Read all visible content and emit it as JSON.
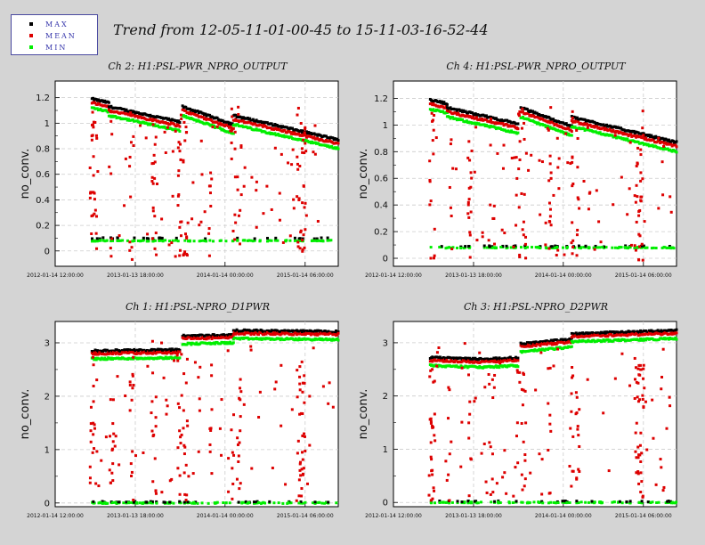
{
  "title": "Trend from 12-05-11-01-00-45 to 15-11-03-16-52-44",
  "colors": {
    "max": "#000000",
    "mean": "#dd0000",
    "min": "#00ee00"
  },
  "legend": [
    {
      "label": "MAX",
      "color": "#000000"
    },
    {
      "label": "MEAN",
      "color": "#dd0000"
    },
    {
      "label": "MIN",
      "color": "#00ee00"
    }
  ],
  "chart_data": [
    {
      "type": "scatter",
      "title": "Ch 2: H1:PSL-PWR_NPRO_OUTPUT",
      "ylabel": "no_conv.",
      "ylim": [
        -0.12,
        1.33
      ],
      "yticks": [
        0,
        0.2,
        0.4,
        0.6,
        0.8,
        1,
        1.2
      ],
      "ytick_labels": [
        "0",
        "0.2",
        "0.4",
        "0.6",
        "0.8",
        "1",
        "1.2"
      ],
      "xticks": [
        "2012-01-14 12:00:00",
        "2013-01-13 18:00:00",
        "2014-01-14 00:00:00",
        "2015-01-14 06:00:00"
      ],
      "grid": true,
      "trend": {
        "segments": [
          {
            "x": [
              0.13,
              0.19
            ],
            "y": [
              1.16,
              1.13
            ]
          },
          {
            "x": [
              0.19,
              0.44
            ],
            "y": [
              1.1,
              0.98
            ]
          },
          {
            "x": [
              0.45,
              0.63
            ],
            "y": [
              1.1,
              0.96
            ]
          },
          {
            "x": [
              0.63,
              1.0
            ],
            "y": [
              1.03,
              0.84
            ]
          }
        ],
        "max_offset": 0.03,
        "min_offset": -0.04,
        "low_min": 0.08,
        "low_max": 0.1
      }
    },
    {
      "type": "scatter",
      "title": "Ch 4: H1:PSL-PWR_NPRO_OUTPUT",
      "ylabel": "no_conv.",
      "ylim": [
        -0.06,
        1.33
      ],
      "yticks": [
        0,
        0.2,
        0.4,
        0.6,
        0.8,
        1,
        1.2
      ],
      "ytick_labels": [
        "0",
        "0.2",
        "0.4",
        "0.6",
        "0.8",
        "1",
        "1.2"
      ],
      "xticks": [
        "2012-01-14 12:00:00",
        "2013-01-13 18:00:00",
        "2014-01-14 00:00:00",
        "2015-01-14 06:00:00"
      ],
      "grid": true,
      "trend": {
        "segments": [
          {
            "x": [
              0.13,
              0.19
            ],
            "y": [
              1.16,
              1.13
            ]
          },
          {
            "x": [
              0.19,
              0.44
            ],
            "y": [
              1.1,
              0.98
            ]
          },
          {
            "x": [
              0.45,
              0.63
            ],
            "y": [
              1.1,
              0.96
            ]
          },
          {
            "x": [
              0.63,
              1.0
            ],
            "y": [
              1.03,
              0.84
            ]
          }
        ],
        "max_offset": 0.03,
        "min_offset": -0.04,
        "low_min": 0.08,
        "low_max": 0.09
      }
    },
    {
      "type": "scatter",
      "title": "Ch 1: H1:PSL-NPRO_D1PWR",
      "ylabel": "no_conv.",
      "ylim": [
        -0.07,
        3.4
      ],
      "yticks": [
        0,
        1,
        2,
        3
      ],
      "ytick_labels": [
        "0",
        "1",
        "2",
        "3"
      ],
      "xticks": [
        "2012-01-14 12:00:00",
        "2013-01-13 18:00:00",
        "2014-01-14 00:00:00",
        "2015-01-14 06:00:00"
      ],
      "grid": true,
      "trend": {
        "segments": [
          {
            "x": [
              0.13,
              0.44
            ],
            "y": [
              2.8,
              2.82
            ]
          },
          {
            "x": [
              0.45,
              0.63
            ],
            "y": [
              3.08,
              3.1
            ]
          },
          {
            "x": [
              0.63,
              1.0
            ],
            "y": [
              3.18,
              3.16
            ]
          }
        ],
        "max_offset": 0.05,
        "min_offset": -0.1,
        "low_min": 0.0,
        "low_max": 0.02
      }
    },
    {
      "type": "scatter",
      "title": "Ch 3: H1:PSL-NPRO_D2PWR",
      "ylabel": "no_conv.",
      "ylim": [
        -0.08,
        3.4
      ],
      "yticks": [
        0,
        1,
        2,
        3
      ],
      "ytick_labels": [
        "0",
        "1",
        "2",
        "3"
      ],
      "xticks": [
        "2012-01-14 12:00:00",
        "2013-01-13 18:00:00",
        "2014-01-14 00:00:00",
        "2015-01-14 06:00:00"
      ],
      "grid": true,
      "trend": {
        "segments": [
          {
            "x": [
              0.13,
              0.32
            ],
            "y": [
              2.67,
              2.64
            ]
          },
          {
            "x": [
              0.32,
              0.44
            ],
            "y": [
              2.64,
              2.67
            ]
          },
          {
            "x": [
              0.45,
              0.63
            ],
            "y": [
              2.93,
              3.02
            ]
          },
          {
            "x": [
              0.63,
              1.0
            ],
            "y": [
              3.12,
              3.18
            ]
          }
        ],
        "max_offset": 0.05,
        "min_offset": -0.1,
        "low_min": 0.0,
        "low_max": 0.02
      }
    }
  ]
}
